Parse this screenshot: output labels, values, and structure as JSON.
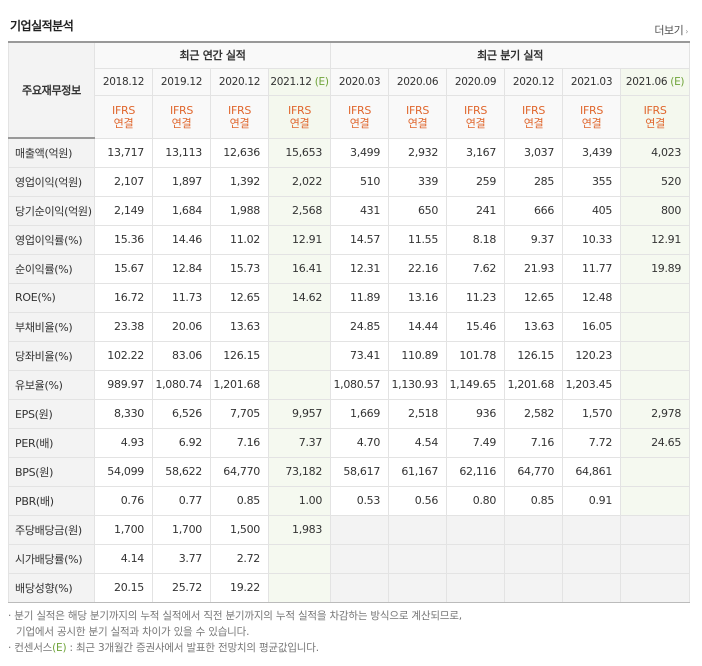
{
  "header": {
    "title": "기업실적분석",
    "more": "더보기",
    "more_arrow": "›"
  },
  "corner_label": "주요재무정보",
  "groups": {
    "annual": "최근 연간 실적",
    "quarter": "최근 분기 실적"
  },
  "periods": [
    "2018.12",
    "2019.12",
    "2020.12",
    "2021.12",
    "2020.03",
    "2020.06",
    "2020.09",
    "2020.12",
    "2021.03",
    "2021.06"
  ],
  "estimate_mark": "(E)",
  "estimate_cols": [
    3,
    9
  ],
  "ifrs_line1": "IFRS",
  "ifrs_line2": "연결",
  "rows": [
    {
      "label": "매출액(억원)",
      "values": [
        "13,717",
        "13,113",
        "12,636",
        "15,653",
        "3,499",
        "2,932",
        "3,167",
        "3,037",
        "3,439",
        "4,023"
      ]
    },
    {
      "label": "영업이익(억원)",
      "values": [
        "2,107",
        "1,897",
        "1,392",
        "2,022",
        "510",
        "339",
        "259",
        "285",
        "355",
        "520"
      ]
    },
    {
      "label": "당기순이익(억원)",
      "values": [
        "2,149",
        "1,684",
        "1,988",
        "2,568",
        "431",
        "650",
        "241",
        "666",
        "405",
        "800"
      ]
    },
    {
      "label": "영업이익률(%)",
      "values": [
        "15.36",
        "14.46",
        "11.02",
        "12.91",
        "14.57",
        "11.55",
        "8.18",
        "9.37",
        "10.33",
        "12.91"
      ]
    },
    {
      "label": "순이익률(%)",
      "values": [
        "15.67",
        "12.84",
        "15.73",
        "16.41",
        "12.31",
        "22.16",
        "7.62",
        "21.93",
        "11.77",
        "19.89"
      ]
    },
    {
      "label": "ROE(%)",
      "values": [
        "16.72",
        "11.73",
        "12.65",
        "14.62",
        "11.89",
        "13.16",
        "11.23",
        "12.65",
        "12.48",
        ""
      ]
    },
    {
      "label": "부채비율(%)",
      "values": [
        "23.38",
        "20.06",
        "13.63",
        "",
        "24.85",
        "14.44",
        "15.46",
        "13.63",
        "16.05",
        ""
      ]
    },
    {
      "label": "당좌비율(%)",
      "values": [
        "102.22",
        "83.06",
        "126.15",
        "",
        "73.41",
        "110.89",
        "101.78",
        "126.15",
        "120.23",
        ""
      ]
    },
    {
      "label": "유보율(%)",
      "values": [
        "989.97",
        "1,080.74",
        "1,201.68",
        "",
        "1,080.57",
        "1,130.93",
        "1,149.65",
        "1,201.68",
        "1,203.45",
        ""
      ]
    },
    {
      "label": "EPS(원)",
      "values": [
        "8,330",
        "6,526",
        "7,705",
        "9,957",
        "1,669",
        "2,518",
        "936",
        "2,582",
        "1,570",
        "2,978"
      ]
    },
    {
      "label": "PER(배)",
      "values": [
        "4.93",
        "6.92",
        "7.16",
        "7.37",
        "4.70",
        "4.54",
        "7.49",
        "7.16",
        "7.72",
        "24.65"
      ]
    },
    {
      "label": "BPS(원)",
      "values": [
        "54,099",
        "58,622",
        "64,770",
        "73,182",
        "58,617",
        "61,167",
        "62,116",
        "64,770",
        "64,861",
        ""
      ]
    },
    {
      "label": "PBR(배)",
      "values": [
        "0.76",
        "0.77",
        "0.85",
        "1.00",
        "0.53",
        "0.56",
        "0.80",
        "0.85",
        "0.91",
        ""
      ]
    },
    {
      "label": "주당배당금(원)",
      "values": [
        "1,700",
        "1,700",
        "1,500",
        "1,983",
        "",
        "",
        "",
        "",
        "",
        ""
      ]
    },
    {
      "label": "시가배당률(%)",
      "values": [
        "4.14",
        "3.77",
        "2.72",
        "",
        "",
        "",
        "",
        "",
        "",
        ""
      ]
    },
    {
      "label": "배당성향(%)",
      "values": [
        "20.15",
        "25.72",
        "19.22",
        "",
        "",
        "",
        "",
        "",
        "",
        ""
      ]
    }
  ],
  "group_starts": [
    0,
    3,
    6,
    9,
    13
  ],
  "blank_rows_quarter_from": 13,
  "notes": {
    "bullet": "·",
    "line1": "분기 실적은 해당 분기까지의 누적 실적에서 직전 분기까지의 누적 실적을 차감하는 방식으로 계산되므로,",
    "line2": "기업에서 공시한 분기 실적과 차이가 있을 수 있습니다.",
    "line3_pre": "컨센서스",
    "line3_mark": "(E)",
    "line3_post": " : 최근 3개월간 증권사에서 발표한 전망치의 평균값입니다."
  }
}
